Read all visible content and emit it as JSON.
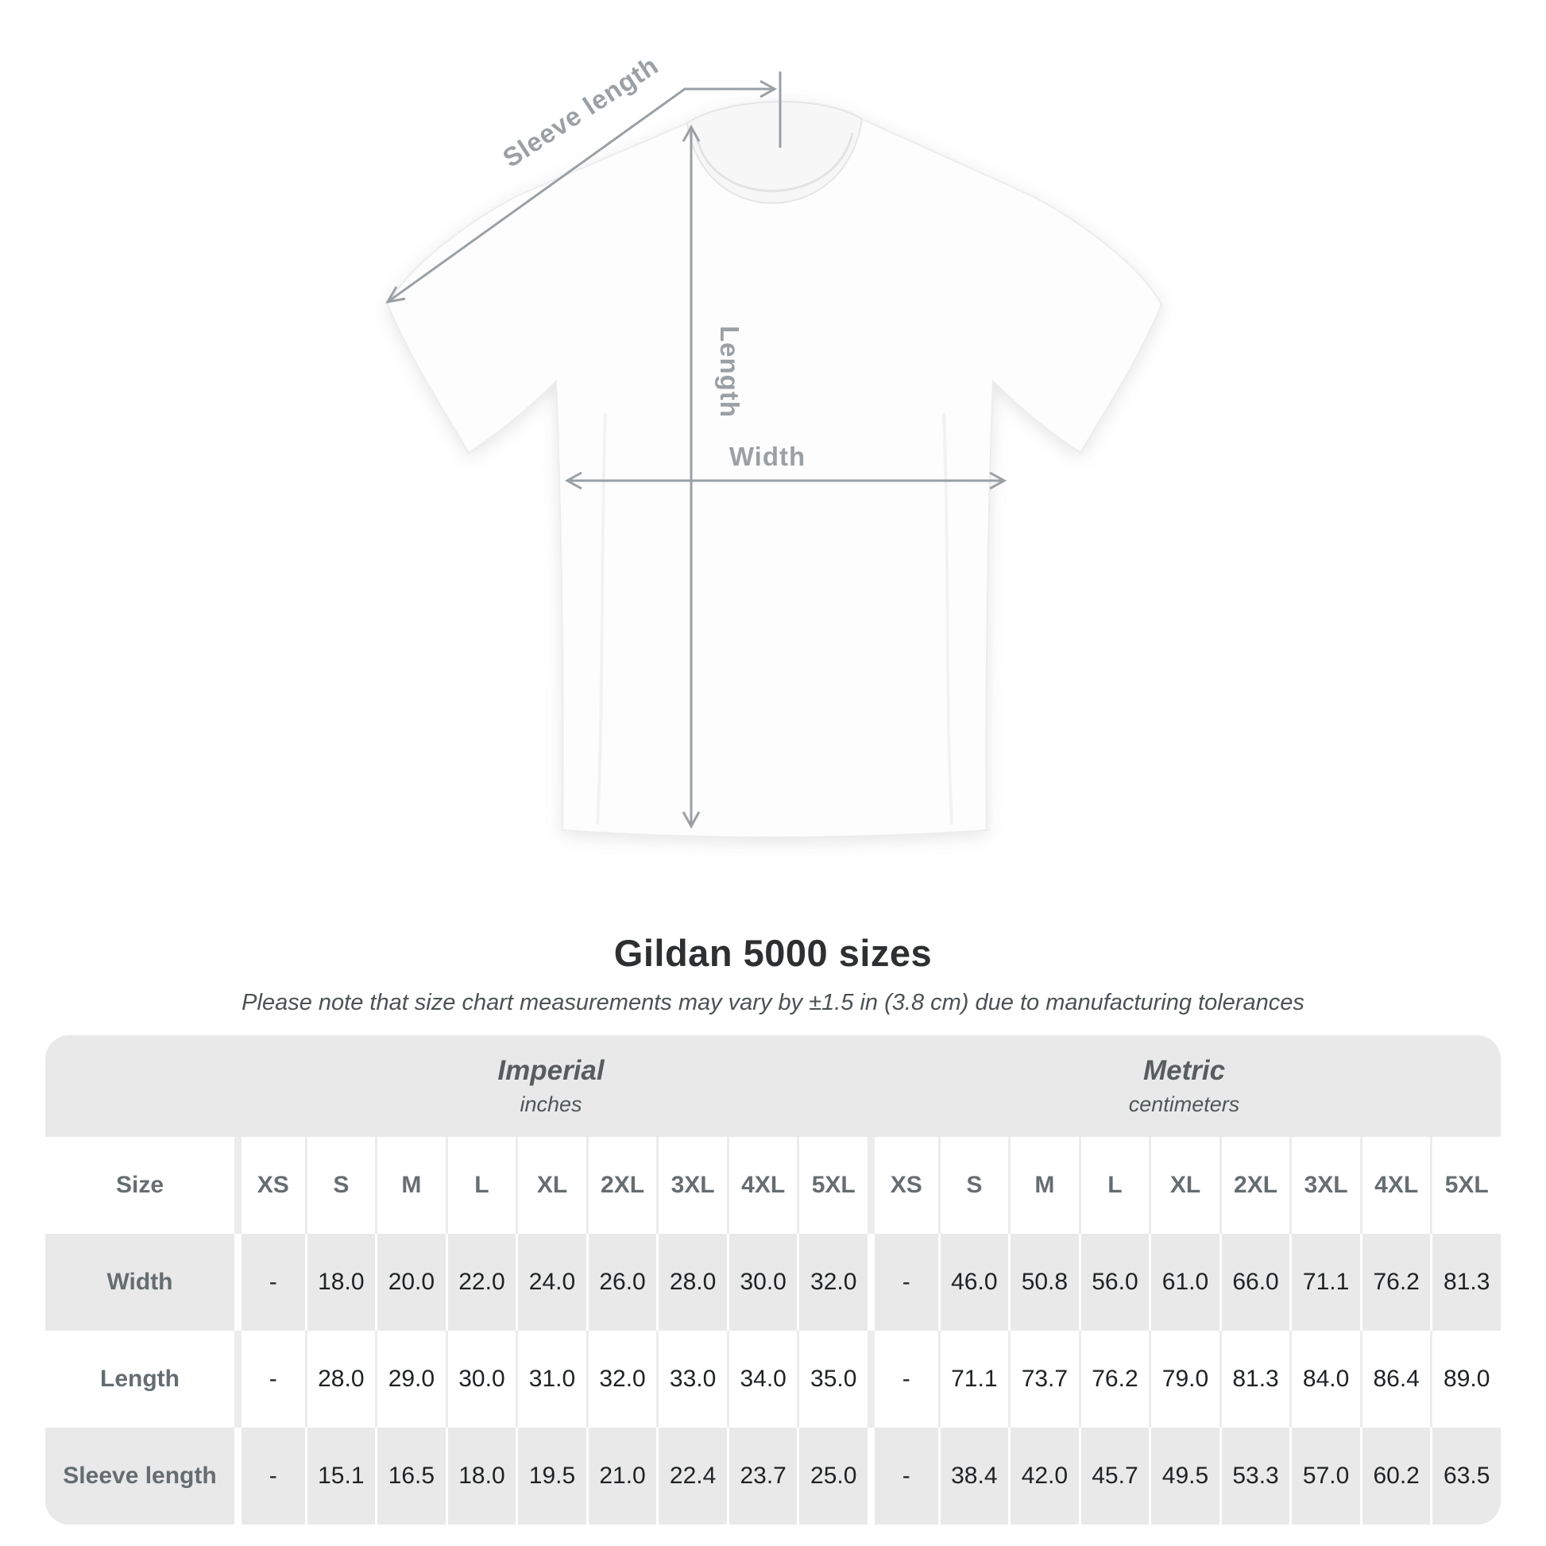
{
  "figure": {
    "sleeve_length_label": "Sleeve length",
    "length_label": "Length",
    "width_label": "Width"
  },
  "chart_data": {
    "type": "table",
    "title": "Gildan 5000 sizes",
    "note": "Please note that size chart measurements may vary by ±1.5 in (3.8 cm) due to manufacturing tolerances",
    "size_header_label": "Size",
    "sizes": [
      "XS",
      "S",
      "M",
      "L",
      "XL",
      "2XL",
      "3XL",
      "4XL",
      "5XL"
    ],
    "unit_groups": [
      {
        "name": "Imperial",
        "unit": "inches"
      },
      {
        "name": "Metric",
        "unit": "centimeters"
      }
    ],
    "rows": [
      {
        "label": "Width",
        "imperial": [
          "-",
          "18.0",
          "20.0",
          "22.0",
          "24.0",
          "26.0",
          "28.0",
          "30.0",
          "32.0"
        ],
        "metric": [
          "-",
          "46.0",
          "50.8",
          "56.0",
          "61.0",
          "66.0",
          "71.1",
          "76.2",
          "81.3"
        ]
      },
      {
        "label": "Length",
        "imperial": [
          "-",
          "28.0",
          "29.0",
          "30.0",
          "31.0",
          "32.0",
          "33.0",
          "34.0",
          "35.0"
        ],
        "metric": [
          "-",
          "71.1",
          "73.7",
          "76.2",
          "79.0",
          "81.3",
          "84.0",
          "86.4",
          "89.0"
        ]
      },
      {
        "label": "Sleeve length",
        "imperial": [
          "-",
          "15.1",
          "16.5",
          "18.0",
          "19.5",
          "21.0",
          "22.4",
          "23.7",
          "25.0"
        ],
        "metric": [
          "-",
          "38.4",
          "42.0",
          "45.7",
          "49.5",
          "53.3",
          "57.0",
          "60.2",
          "63.5"
        ]
      }
    ]
  },
  "colors": {
    "annotation_gray": "#9aa0a4",
    "table_band_gray": "#e9e9e9",
    "header_text": "#666d70",
    "value_text": "#1f2224",
    "title_text": "#2d2f30"
  }
}
